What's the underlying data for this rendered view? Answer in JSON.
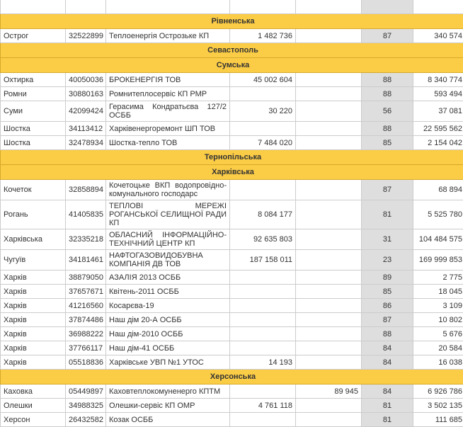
{
  "sections": [
    {
      "region": null,
      "rows": [
        {
          "city": "",
          "code": "",
          "name": "",
          "v1": "",
          "v2": "",
          "score": "",
          "total": ""
        }
      ]
    },
    {
      "region": "Рівненська",
      "rows": [
        {
          "city": "Острог",
          "code": "32522899",
          "name": "Теплоенергія Острозьке КП",
          "v1": "1 482 736",
          "v2": "",
          "score": "87",
          "total": "340 574"
        }
      ]
    },
    {
      "region": "Севастополь",
      "rows": []
    },
    {
      "region": "Сумська",
      "rows": [
        {
          "city": "Охтирка",
          "code": "40050036",
          "name": "БРОКЕНЕРГІЯ ТОВ",
          "v1": "45 002 604",
          "v2": "",
          "score": "88",
          "total": "8 340 774"
        },
        {
          "city": "Ромни",
          "code": "30880163",
          "name": "Ромнитеплосервіс КП РМР",
          "v1": "",
          "v2": "",
          "score": "88",
          "total": "593 494"
        },
        {
          "city": "Суми",
          "code": "42099424",
          "name": "Герасима Кондратьєва 127/2 ОСББ",
          "v1": "30 220",
          "v2": "",
          "score": "56",
          "total": "37 081"
        },
        {
          "city": "Шостка",
          "code": "34113412",
          "name": "Харківенергоремонт ШП ТОВ",
          "v1": "",
          "v2": "",
          "score": "88",
          "total": "22 595 562"
        },
        {
          "city": "Шостка",
          "code": "32478934",
          "name": "Шостка-тепло ТОВ",
          "v1": "7 484 020",
          "v2": "",
          "score": "85",
          "total": "2 154 042"
        }
      ]
    },
    {
      "region": "Тернопільська",
      "rows": []
    },
    {
      "region": "Харківська",
      "rows": [
        {
          "city": "Кочеток",
          "code": "32858894",
          "name": "Кочетоцьке ВКП водопровідно-комунального господарс",
          "v1": "",
          "v2": "",
          "score": "87",
          "total": "68 894"
        },
        {
          "city": "Рогань",
          "code": "41405835",
          "name": "ТЕПЛОВІ МЕРЕЖІ РОГАНСЬКОЇ СЕЛИЩНОЇ РАДИ КП",
          "v1": "8 084 177",
          "v2": "",
          "score": "81",
          "total": "5 525 780"
        },
        {
          "city": "Харківська",
          "code": "32335218",
          "name": "ОБЛАСНИЙ ІНФОРМАЦІЙНО-ТЕХНІЧНИЙ ЦЕНТР КП",
          "v1": "92 635 803",
          "v2": "",
          "score": "31",
          "total": "104 484 575"
        },
        {
          "city": "Чугуїв",
          "code": "34181461",
          "name": "НАФТОГАЗОВИДОБУВНА КОМПАНІЯ ДВ ТОВ",
          "v1": "187 158 011",
          "v2": "",
          "score": "23",
          "total": "169 999 853"
        },
        {
          "city": "Харків",
          "code": "38879050",
          "name": "АЗАЛІЯ 2013 ОСББ",
          "v1": "",
          "v2": "",
          "score": "89",
          "total": "2 775"
        },
        {
          "city": "Харків",
          "code": "37657671",
          "name": "Квітень-2011 ОСББ",
          "v1": "",
          "v2": "",
          "score": "85",
          "total": "18 045"
        },
        {
          "city": "Харків",
          "code": "41216560",
          "name": "Косарєва-19",
          "v1": "",
          "v2": "",
          "score": "86",
          "total": "3 109"
        },
        {
          "city": "Харків",
          "code": "37874486",
          "name": "Наш дім 20-А ОСББ",
          "v1": "",
          "v2": "",
          "score": "87",
          "total": "10 802"
        },
        {
          "city": "Харків",
          "code": "36988222",
          "name": "Наш дім-2010 ОСББ",
          "v1": "",
          "v2": "",
          "score": "88",
          "total": "5 676"
        },
        {
          "city": "Харків",
          "code": "37766117",
          "name": "Наш дім-41 ОСББ",
          "v1": "",
          "v2": "",
          "score": "84",
          "total": "20 584"
        },
        {
          "city": "Харків",
          "code": "05518836",
          "name": "Харківське УВП №1 УТОС",
          "v1": "14 193",
          "v2": "",
          "score": "84",
          "total": "16 038"
        }
      ]
    },
    {
      "region": "Херсонська",
      "rows": [
        {
          "city": "Каховка",
          "code": "05449897",
          "name": "Каховтеплокомуненерго КПТМ",
          "v1": "",
          "v2": "89 945",
          "score": "84",
          "total": "6 926 786"
        },
        {
          "city": "Олешки",
          "code": "34988325",
          "name": "Олешки-сервіс КП ОМР",
          "v1": "4 761 118",
          "v2": "",
          "score": "81",
          "total": "3 502 135"
        },
        {
          "city": "Херсон",
          "code": "26432582",
          "name": "Козак ОСББ",
          "v1": "",
          "v2": "",
          "score": "81",
          "total": "111 685"
        }
      ]
    }
  ]
}
